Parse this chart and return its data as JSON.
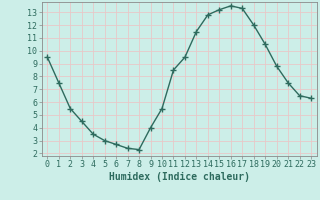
{
  "x": [
    0,
    1,
    2,
    3,
    4,
    5,
    6,
    7,
    8,
    9,
    10,
    11,
    12,
    13,
    14,
    15,
    16,
    17,
    18,
    19,
    20,
    21,
    22,
    23
  ],
  "y": [
    9.5,
    7.5,
    5.5,
    4.5,
    3.5,
    3.0,
    2.7,
    2.4,
    2.3,
    4.0,
    5.5,
    8.5,
    9.5,
    11.5,
    12.8,
    13.2,
    13.5,
    13.3,
    12.0,
    10.5,
    8.8,
    7.5,
    6.5,
    6.3
  ],
  "line_color": "#2e6b5e",
  "marker": "+",
  "marker_size": 4,
  "line_width": 1.0,
  "xlabel": "Humidex (Indice chaleur)",
  "xlabel_fontsize": 7,
  "bg_color": "#cceee8",
  "grid_major_color": "#e8c8c8",
  "grid_minor_color": "#e8c8c8",
  "xlim": [
    -0.5,
    23.5
  ],
  "ylim": [
    1.8,
    13.8
  ],
  "yticks": [
    2,
    3,
    4,
    5,
    6,
    7,
    8,
    9,
    10,
    11,
    12,
    13
  ],
  "xticks": [
    0,
    1,
    2,
    3,
    4,
    5,
    6,
    7,
    8,
    9,
    10,
    11,
    12,
    13,
    14,
    15,
    16,
    17,
    18,
    19,
    20,
    21,
    22,
    23
  ],
  "tick_fontsize": 6,
  "tick_color": "#2e6b5e",
  "spine_color": "#8a8a8a"
}
